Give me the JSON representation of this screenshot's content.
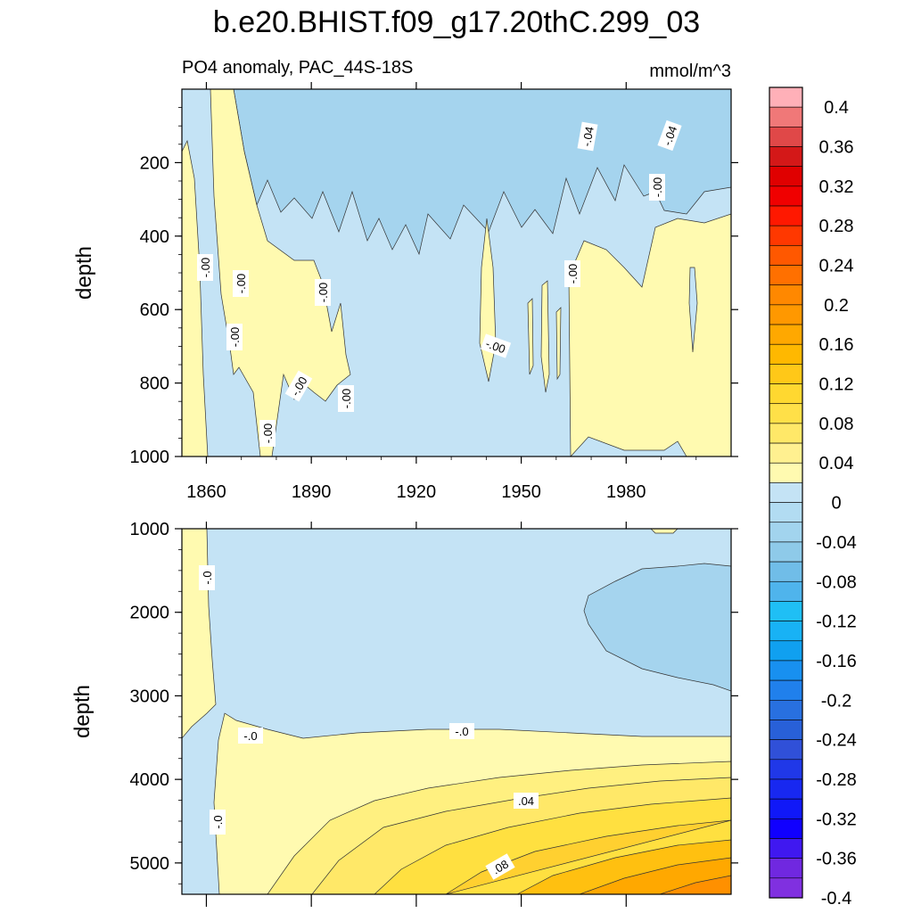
{
  "title": "b.e20.BHIST.f09_g17.20thC.299_03",
  "subtitle_left": "PO4 anomaly, PAC_44S-18S",
  "subtitle_right": "mmol/m^3",
  "colors": {
    "zero_to_pos_first": "#fffab0",
    "neg_first": "#c4e3f5",
    "neg_second": "#a5d4ee",
    "pos_second": "#fff080",
    "pos_third": "#ffe040",
    "pos_fourth": "#ffc010",
    "pos_fifth": "#ffa000",
    "pos_sixth": "#ff8000"
  },
  "chart_data": [
    {
      "type": "heatmap",
      "panel": "upper",
      "ylabel": "depth",
      "xlabel": "",
      "x_ticks": [
        "1860",
        "1890",
        "1920",
        "1950",
        "1980"
      ],
      "y_ticks": [
        "200",
        "400",
        "600",
        "800",
        "1000"
      ],
      "xlim": [
        1853,
        2010
      ],
      "ylim": [
        0,
        1000
      ],
      "y_inverted": true,
      "contour_labels": [
        "-.00",
        "-.00",
        "-.00",
        "-.00",
        "-.00",
        "-.00",
        "-.00",
        "-.00",
        "-.00",
        "-.00",
        "-.04",
        "-.04"
      ]
    },
    {
      "type": "heatmap",
      "panel": "lower",
      "ylabel": "depth",
      "xlabel": "",
      "y_ticks": [
        "1000",
        "2000",
        "3000",
        "4000",
        "5000"
      ],
      "xlim": [
        1853,
        2010
      ],
      "ylim": [
        1000,
        5375
      ],
      "y_inverted": true,
      "contour_labels": [
        "-.0",
        "-.0",
        "-.0",
        "-.0",
        ".04",
        ".08"
      ]
    }
  ],
  "colorbar": {
    "labels": [
      "0.4",
      "0.36",
      "0.32",
      "0.28",
      "0.24",
      "0.2",
      "0.16",
      "0.12",
      "0.08",
      "0.04",
      "0",
      "-0.04",
      "-0.08",
      "-0.12",
      "-0.16",
      "-0.2",
      "-0.24",
      "-0.28",
      "-0.32",
      "-0.36",
      "-0.4"
    ],
    "swatches": [
      "#ffb0b8",
      "#f07878",
      "#e04848",
      "#d41818",
      "#e00000",
      "#f00000",
      "#ff1800",
      "#ff3800",
      "#ff5800",
      "#ff7000",
      "#ff8800",
      "#ff9800",
      "#ffa800",
      "#ffb800",
      "#ffc818",
      "#ffd830",
      "#ffe048",
      "#ffe868",
      "#fff090",
      "#fffab0",
      "#c4e3f5",
      "#b2dcf2",
      "#a2d4ee",
      "#8ecae9",
      "#70bde8",
      "#4fb4ec",
      "#1fbff5",
      "#18b2f5",
      "#10a0f0",
      "#1890f0",
      "#2080ec",
      "#2870e0",
      "#2860d8",
      "#3050d8",
      "#2038e8",
      "#1828f0",
      "#1018f8",
      "#1000ff",
      "#4018f0",
      "#7028e0",
      "#8030e0"
    ]
  }
}
